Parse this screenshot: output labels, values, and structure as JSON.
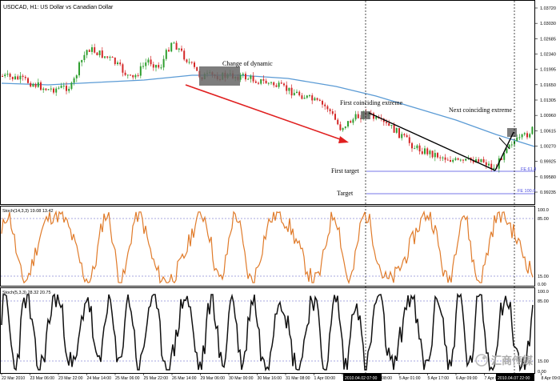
{
  "window": {
    "title": "USDCAD, H1: US Dollar vs Canadian Dollar"
  },
  "price_axis": {
    "ticks": [
      "1.03720",
      "1.03030",
      "1.02685",
      "1.02340",
      "1.01995",
      "1.01650",
      "1.01305",
      "1.00960",
      "1.00615",
      "1.00270",
      "0.99925",
      "0.99580",
      "0.99235"
    ]
  },
  "annotations": {
    "change_of_dynamic": "Change of dynamic",
    "first_coinciding": "First coinciding extreme",
    "next_coinciding": "Next coinciding extreme",
    "first_target": "First target",
    "target": "Target",
    "fe_61": "FE 61.8",
    "fe_100": "FE 100.0"
  },
  "stoch1": {
    "label": "Stoch(14,3,3) 19.08 13.42",
    "levels": [
      "100.0",
      "85.00",
      "15.00",
      "0.00"
    ]
  },
  "stoch2": {
    "label": "Stoch(5,3,3) 28.32 20.75",
    "levels": [
      "100.0",
      "85.00",
      "15.00",
      "0.00"
    ]
  },
  "time_axis": {
    "labels": [
      "22 Mar 2010",
      "23 Mar 06:00",
      "23 Mar 22:00",
      "24 Mar 14:00",
      "25 Mar 06:00",
      "25 Mar 22:00",
      "26 Mar 14:00",
      "29 Mar 06:00",
      "30 Mar 00:00",
      "30 Mar 16:00",
      "31 Mar 08:00",
      "1 Apr 00:00",
      "1 Apr 16:00",
      "2 Apr 08:00",
      "5 Apr 01:00",
      "5 Apr 17:00",
      "6 Apr 09:00",
      "7 Apr 01:00",
      "7 Apr 17:00",
      "8 Apr 09:00"
    ],
    "highlight_1": "2010.04.02 07:00",
    "highlight_2": "2010.04.07 22:00"
  },
  "colors": {
    "up_candle": "#2e9e2e",
    "down_candle": "#d42828",
    "ma_line": "#5b9bd5",
    "stoch1_line": "#e07b2a",
    "stoch2_line": "#111111",
    "arrow": "#e02020",
    "fe_line": "#4a4ae0"
  },
  "watermark": {
    "text": "汇商传媒"
  }
}
